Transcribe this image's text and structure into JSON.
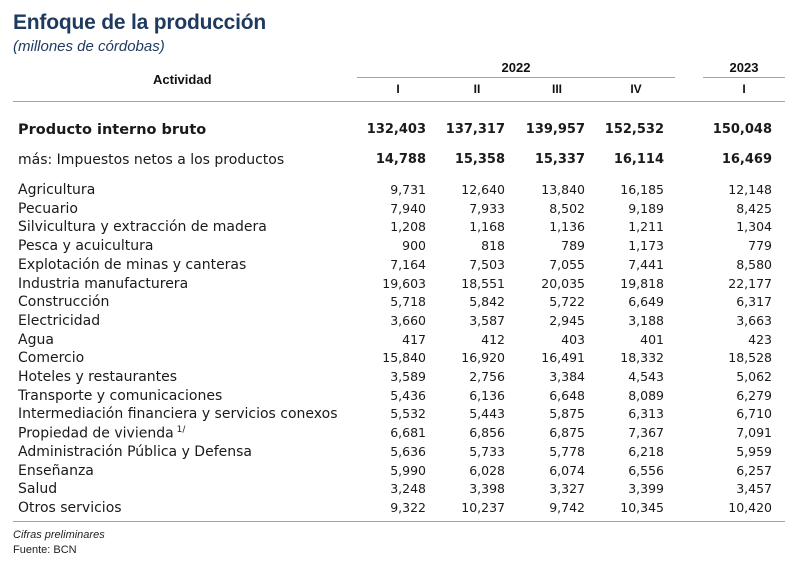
{
  "title": "Enfoque de la producción",
  "subtitle": "(millones de córdobas)",
  "header": {
    "activity_label": "Actividad",
    "year_a": "2022",
    "year_b": "2023",
    "quarters": [
      "I",
      "II",
      "III",
      "IV",
      "I"
    ]
  },
  "rows": [
    {
      "label": "Producto interno bruto",
      "values": [
        "132,403",
        "137,317",
        "139,957",
        "152,532",
        "150,048"
      ]
    },
    {
      "label": "más: Impuestos netos a los productos",
      "values": [
        "14,788",
        "15,358",
        "15,337",
        "16,114",
        "16,469"
      ]
    },
    {
      "label": "Agricultura",
      "values": [
        "9,731",
        "12,640",
        "13,840",
        "16,185",
        "12,148"
      ]
    },
    {
      "label": "Pecuario",
      "values": [
        "7,940",
        "7,933",
        "8,502",
        "9,189",
        "8,425"
      ]
    },
    {
      "label": "Silvicultura y extracción de madera",
      "values": [
        "1,208",
        "1,168",
        "1,136",
        "1,211",
        "1,304"
      ]
    },
    {
      "label": "Pesca y acuicultura",
      "values": [
        "900",
        "818",
        "789",
        "1,173",
        "779"
      ]
    },
    {
      "label": "Explotación de minas y canteras",
      "values": [
        "7,164",
        "7,503",
        "7,055",
        "7,441",
        "8,580"
      ]
    },
    {
      "label": "Industria manufacturera",
      "values": [
        "19,603",
        "18,551",
        "20,035",
        "19,818",
        "22,177"
      ]
    },
    {
      "label": "Construcción",
      "values": [
        "5,718",
        "5,842",
        "5,722",
        "6,649",
        "6,317"
      ]
    },
    {
      "label": "Electricidad",
      "values": [
        "3,660",
        "3,587",
        "2,945",
        "3,188",
        "3,663"
      ]
    },
    {
      "label": "Agua",
      "values": [
        "417",
        "412",
        "403",
        "401",
        "423"
      ]
    },
    {
      "label": "Comercio",
      "values": [
        "15,840",
        "16,920",
        "16,491",
        "18,332",
        "18,528"
      ]
    },
    {
      "label": "Hoteles y restaurantes",
      "values": [
        "3,589",
        "2,756",
        "3,384",
        "4,543",
        "5,062"
      ]
    },
    {
      "label": "Transporte y comunicaciones",
      "values": [
        "5,436",
        "6,136",
        "6,648",
        "8,089",
        "6,279"
      ]
    },
    {
      "label": "Intermediación financiera y servicios conexos",
      "values": [
        "5,532",
        "5,443",
        "5,875",
        "6,313",
        "6,710"
      ]
    },
    {
      "label": "Propiedad de vivienda",
      "note": "1/",
      "values": [
        "6,681",
        "6,856",
        "6,875",
        "7,367",
        "7,091"
      ]
    },
    {
      "label": "Administración Pública y Defensa",
      "values": [
        "5,636",
        "5,733",
        "5,778",
        "6,218",
        "5,959"
      ]
    },
    {
      "label": "Enseñanza",
      "values": [
        "5,990",
        "6,028",
        "6,074",
        "6,556",
        "6,257"
      ]
    },
    {
      "label": "Salud",
      "values": [
        "3,248",
        "3,398",
        "3,327",
        "3,399",
        "3,457"
      ]
    },
    {
      "label": "Otros servicios",
      "values": [
        "9,322",
        "10,237",
        "9,742",
        "10,345",
        "10,420"
      ]
    }
  ],
  "footer": {
    "note": "Cifras preliminares",
    "source": "Fuente: BCN"
  }
}
